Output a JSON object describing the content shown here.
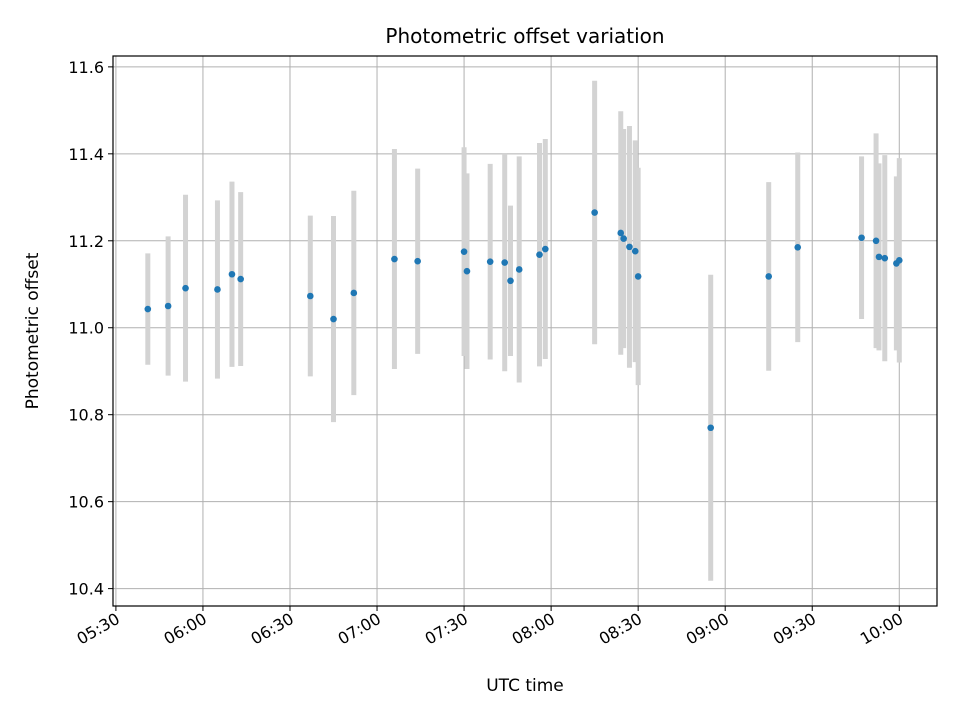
{
  "chart_data": {
    "type": "scatter",
    "title": "Photometric offset variation",
    "xlabel": "UTC time",
    "ylabel": "Photometric offset",
    "x_ticks": [
      "05:30",
      "06:00",
      "06:30",
      "07:00",
      "07:30",
      "08:00",
      "08:30",
      "09:00",
      "09:30",
      "10:00"
    ],
    "y_ticks": [
      "10.4",
      "10.6",
      "10.8",
      "11.0",
      "11.2",
      "11.4",
      "11.6"
    ],
    "xlim": [
      "05:29",
      "10:13"
    ],
    "ylim": [
      10.36,
      11.625
    ],
    "grid": true,
    "colors": {
      "point": "#1f77b4",
      "errorbar": "#d3d3d3",
      "grid": "#b0b0b0"
    },
    "series": [
      {
        "points": [
          {
            "x": "05:41",
            "y": 11.043,
            "err": 0.128
          },
          {
            "x": "05:48",
            "y": 11.05,
            "err": 0.16
          },
          {
            "x": "05:54",
            "y": 11.091,
            "err": 0.215
          },
          {
            "x": "06:05",
            "y": 11.088,
            "err": 0.205
          },
          {
            "x": "06:10",
            "y": 11.123,
            "err": 0.213
          },
          {
            "x": "06:13",
            "y": 11.112,
            "err": 0.2
          },
          {
            "x": "06:37",
            "y": 11.073,
            "err": 0.185
          },
          {
            "x": "06:45",
            "y": 11.02,
            "err": 0.237
          },
          {
            "x": "06:52",
            "y": 11.08,
            "err": 0.235
          },
          {
            "x": "07:06",
            "y": 11.158,
            "err": 0.253
          },
          {
            "x": "07:14",
            "y": 11.153,
            "err": 0.213
          },
          {
            "x": "07:30",
            "y": 11.175,
            "err": 0.24
          },
          {
            "x": "07:31",
            "y": 11.13,
            "err": 0.225
          },
          {
            "x": "07:39",
            "y": 11.152,
            "err": 0.225
          },
          {
            "x": "07:44",
            "y": 11.15,
            "err": 0.25
          },
          {
            "x": "07:46",
            "y": 11.108,
            "err": 0.173
          },
          {
            "x": "07:49",
            "y": 11.134,
            "err": 0.26
          },
          {
            "x": "07:56",
            "y": 11.168,
            "err": 0.257
          },
          {
            "x": "07:58",
            "y": 11.181,
            "err": 0.253
          },
          {
            "x": "08:15",
            "y": 11.265,
            "err": 0.303
          },
          {
            "x": "08:24",
            "y": 11.218,
            "err": 0.28
          },
          {
            "x": "08:25",
            "y": 11.205,
            "err": 0.252
          },
          {
            "x": "08:27",
            "y": 11.186,
            "err": 0.278
          },
          {
            "x": "08:29",
            "y": 11.176,
            "err": 0.255
          },
          {
            "x": "08:30",
            "y": 11.118,
            "err": 0.25
          },
          {
            "x": "08:55",
            "y": 10.77,
            "err": 0.352
          },
          {
            "x": "09:15",
            "y": 11.118,
            "err": 0.217
          },
          {
            "x": "09:25",
            "y": 11.185,
            "err": 0.218
          },
          {
            "x": "09:47",
            "y": 11.207,
            "err": 0.187
          },
          {
            "x": "09:52",
            "y": 11.2,
            "err": 0.247
          },
          {
            "x": "09:53",
            "y": 11.163,
            "err": 0.215
          },
          {
            "x": "09:55",
            "y": 11.16,
            "err": 0.237
          },
          {
            "x": "09:59",
            "y": 11.148,
            "err": 0.2
          },
          {
            "x": "10:00",
            "y": 11.155,
            "err": 0.235
          }
        ]
      }
    ]
  }
}
